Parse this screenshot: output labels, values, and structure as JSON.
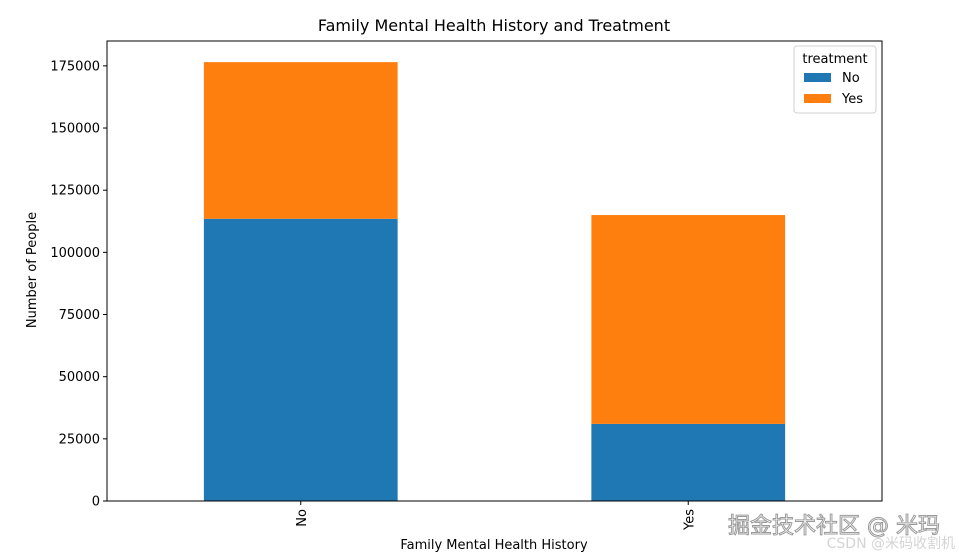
{
  "chart_data": {
    "type": "bar",
    "stacked": true,
    "title": "Family Mental Health History and Treatment",
    "xlabel": "Family Mental Health History",
    "ylabel": "Number of People",
    "categories": [
      "No",
      "Yes"
    ],
    "series": [
      {
        "name": "No",
        "values": [
          113500,
          31000
        ],
        "color": "#1f77b4"
      },
      {
        "name": "Yes",
        "values": [
          63000,
          84000
        ],
        "color": "#ff7f0e"
      }
    ],
    "ylim": [
      0,
      185000
    ],
    "yticks": [
      0,
      25000,
      50000,
      75000,
      100000,
      125000,
      150000,
      175000
    ],
    "grid": false,
    "legend": {
      "title": "treatment",
      "placement": "top-right"
    }
  },
  "watermark": {
    "line1": "掘金技术社区 @ 米玛",
    "line2": "CSDN @米码收割机"
  }
}
